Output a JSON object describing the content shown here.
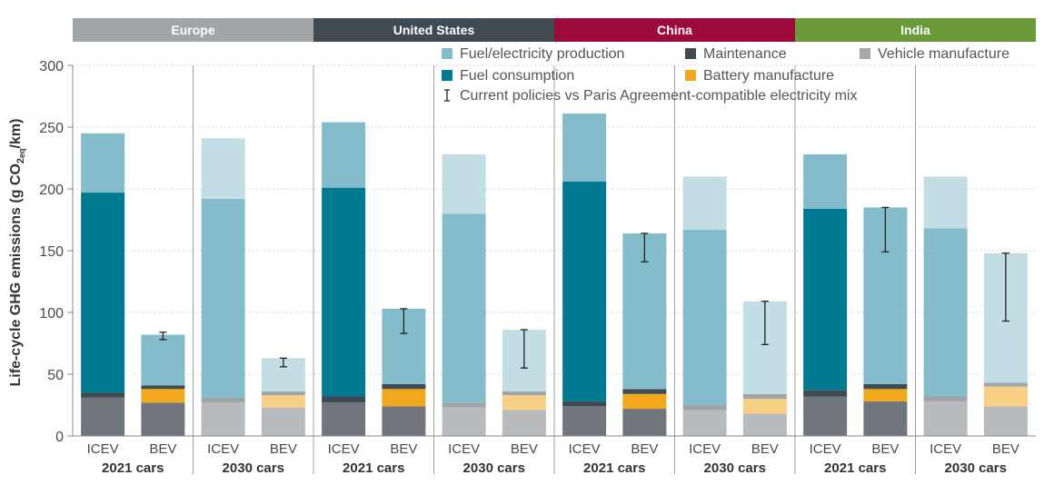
{
  "chart_data": {
    "type": "bar",
    "stacked": true,
    "ylabel_main": "Life-cycle GHG emissions (g CO",
    "ylabel_sub_2": "2",
    "ylabel_sub_eq": "eq",
    "ylabel_tail": "/km)",
    "ylim": [
      0,
      300
    ],
    "yticks": [
      0,
      50,
      100,
      150,
      200,
      250,
      300
    ],
    "grid": true,
    "legend_position": "top-right",
    "regions": [
      {
        "name": "Europe",
        "color": "#a2a5a7"
      },
      {
        "name": "United States",
        "color": "#3f4a53"
      },
      {
        "name": "China",
        "color": "#9c0a3c"
      },
      {
        "name": "India",
        "color": "#6a9a3a"
      }
    ],
    "group_labels": [
      "2021 cars",
      "2030 cars"
    ],
    "bar_types": [
      "ICEV",
      "BEV"
    ],
    "components": [
      {
        "key": "vehicle",
        "name": "Vehicle manufacture",
        "color": "#a5a8aa",
        "color_2021": "#70767b",
        "color_2030": "#b8bbbd"
      },
      {
        "key": "battery",
        "name": "Battery manufacture",
        "color": "#f2a81d",
        "color_2021": "#f2a81d",
        "color_2030": "#f7cf85"
      },
      {
        "key": "maintenance",
        "name": "Maintenance",
        "color": "#3f4a53",
        "color_2021": "#3f4a53",
        "color_2030": "#9ea4a8"
      },
      {
        "key": "fuel_consumption",
        "name": "Fuel consumption",
        "color": "#007991",
        "color_2021": "#007991",
        "color_2030": "#84bccb"
      },
      {
        "key": "fuel_production",
        "name": "Fuel/electricity production",
        "color": "#84bccb",
        "color_2021": "#84bccb",
        "color_2030": "#c2dde4"
      }
    ],
    "legend": {
      "fuel_production": "Fuel/electricity production",
      "maintenance": "Maintenance",
      "vehicle": "Vehicle manufacture",
      "fuel_consumption": "Fuel consumption",
      "battery": "Battery manufacture",
      "error_bar": "Current policies vs Paris Agreement-compatible electricity mix"
    },
    "bars": [
      {
        "region": "Europe",
        "group": "2021 cars",
        "type": "ICEV",
        "vehicle": 31,
        "battery": 0,
        "maintenance": 4,
        "fuel_consumption": 162,
        "fuel_production": 48,
        "total": 245
      },
      {
        "region": "Europe",
        "group": "2021 cars",
        "type": "BEV",
        "vehicle": 27,
        "battery": 11,
        "maintenance": 3,
        "fuel_consumption": 0,
        "fuel_production": 41,
        "total": 82,
        "error": [
          78,
          84
        ]
      },
      {
        "region": "Europe",
        "group": "2030 cars",
        "type": "ICEV",
        "vehicle": 27,
        "battery": 0,
        "maintenance": 4,
        "fuel_consumption": 161,
        "fuel_production": 49,
        "total": 241
      },
      {
        "region": "Europe",
        "group": "2030 cars",
        "type": "BEV",
        "vehicle": 23,
        "battery": 10,
        "maintenance": 3,
        "fuel_consumption": 0,
        "fuel_production": 27,
        "total": 63,
        "error": [
          56,
          63
        ]
      },
      {
        "region": "United States",
        "group": "2021 cars",
        "type": "ICEV",
        "vehicle": 27,
        "battery": 0,
        "maintenance": 5,
        "fuel_consumption": 169,
        "fuel_production": 53,
        "total": 254
      },
      {
        "region": "United States",
        "group": "2021 cars",
        "type": "BEV",
        "vehicle": 24,
        "battery": 14,
        "maintenance": 4,
        "fuel_consumption": 0,
        "fuel_production": 61,
        "total": 103,
        "error": [
          83,
          103
        ]
      },
      {
        "region": "United States",
        "group": "2030 cars",
        "type": "ICEV",
        "vehicle": 23,
        "battery": 0,
        "maintenance": 4,
        "fuel_consumption": 153,
        "fuel_production": 48,
        "total": 228
      },
      {
        "region": "United States",
        "group": "2030 cars",
        "type": "BEV",
        "vehicle": 21,
        "battery": 12,
        "maintenance": 3,
        "fuel_consumption": 0,
        "fuel_production": 50,
        "total": 86,
        "error": [
          55,
          86
        ]
      },
      {
        "region": "China",
        "group": "2021 cars",
        "type": "ICEV",
        "vehicle": 24,
        "battery": 0,
        "maintenance": 4,
        "fuel_consumption": 178,
        "fuel_production": 55,
        "total": 261
      },
      {
        "region": "China",
        "group": "2021 cars",
        "type": "BEV",
        "vehicle": 22,
        "battery": 12,
        "maintenance": 4,
        "fuel_consumption": 0,
        "fuel_production": 126,
        "total": 164,
        "error": [
          141,
          164
        ]
      },
      {
        "region": "China",
        "group": "2030 cars",
        "type": "ICEV",
        "vehicle": 21,
        "battery": 0,
        "maintenance": 4,
        "fuel_consumption": 142,
        "fuel_production": 43,
        "total": 210
      },
      {
        "region": "China",
        "group": "2030 cars",
        "type": "BEV",
        "vehicle": 18,
        "battery": 12,
        "maintenance": 4,
        "fuel_consumption": 0,
        "fuel_production": 75,
        "total": 109,
        "error": [
          74,
          109
        ]
      },
      {
        "region": "India",
        "group": "2021 cars",
        "type": "ICEV",
        "vehicle": 32,
        "battery": 0,
        "maintenance": 5,
        "fuel_consumption": 147,
        "fuel_production": 44,
        "total": 228
      },
      {
        "region": "India",
        "group": "2021 cars",
        "type": "BEV",
        "vehicle": 28,
        "battery": 10,
        "maintenance": 4,
        "fuel_consumption": 0,
        "fuel_production": 143,
        "total": 185,
        "error": [
          149,
          185
        ]
      },
      {
        "region": "India",
        "group": "2030 cars",
        "type": "ICEV",
        "vehicle": 28,
        "battery": 0,
        "maintenance": 4,
        "fuel_consumption": 136,
        "fuel_production": 42,
        "total": 210
      },
      {
        "region": "India",
        "group": "2030 cars",
        "type": "BEV",
        "vehicle": 24,
        "battery": 16,
        "maintenance": 3,
        "fuel_consumption": 0,
        "fuel_production": 105,
        "total": 148,
        "error": [
          93,
          148
        ]
      }
    ]
  }
}
